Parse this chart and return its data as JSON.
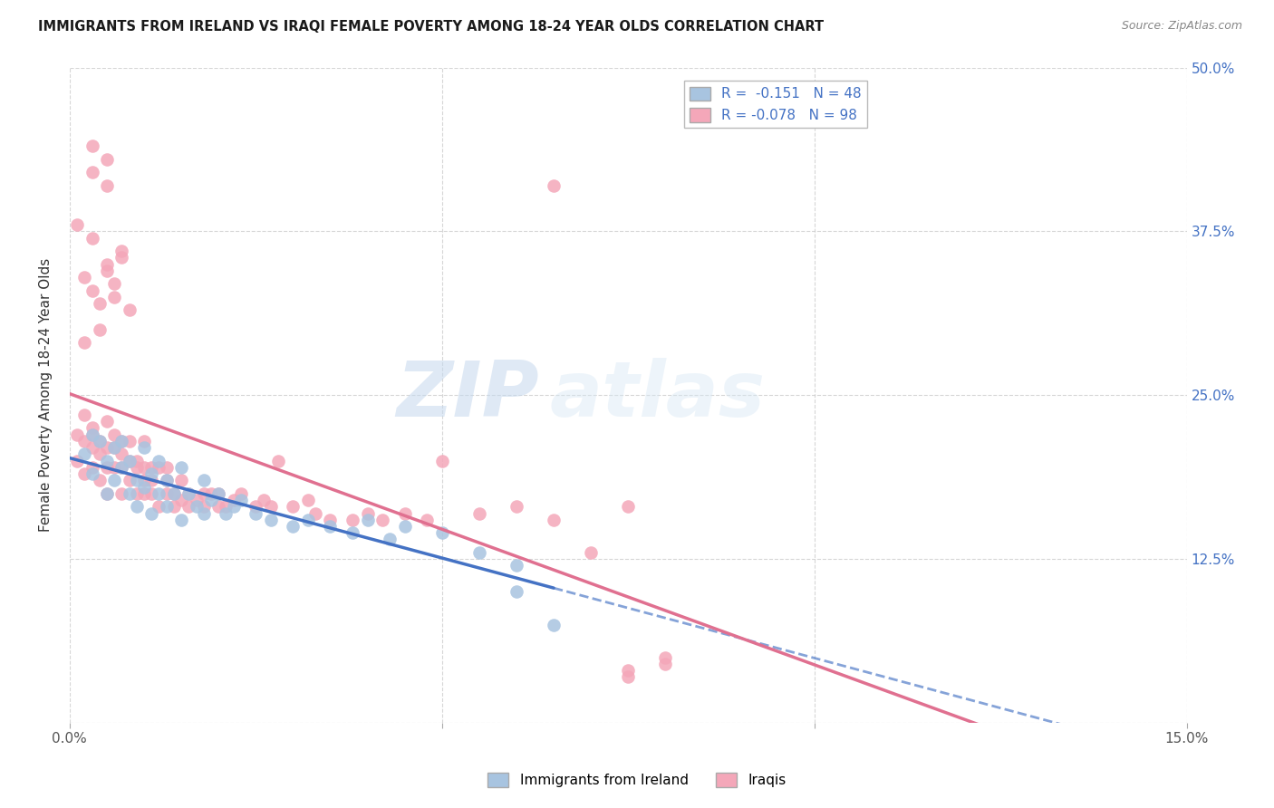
{
  "title": "IMMIGRANTS FROM IRELAND VS IRAQI FEMALE POVERTY AMONG 18-24 YEAR OLDS CORRELATION CHART",
  "source": "Source: ZipAtlas.com",
  "ylabel": "Female Poverty Among 18-24 Year Olds",
  "xlim": [
    0.0,
    0.15
  ],
  "ylim": [
    0.0,
    0.5
  ],
  "xticks": [
    0.0,
    0.05,
    0.1,
    0.15
  ],
  "yticks": [
    0.0,
    0.125,
    0.25,
    0.375,
    0.5
  ],
  "right_ytick_labels": [
    "50.0%",
    "37.5%",
    "25.0%",
    "12.5%",
    ""
  ],
  "xtick_labels": [
    "0.0%",
    "",
    "",
    "15.0%"
  ],
  "ireland_color": "#a8c4e0",
  "iraqi_color": "#f4a7b9",
  "ireland_line_color": "#4472c4",
  "iraqi_line_color": "#e07090",
  "ireland_R": -0.151,
  "ireland_N": 48,
  "iraqi_R": -0.078,
  "iraqi_N": 98,
  "legend_label_ireland": "Immigrants from Ireland",
  "legend_label_iraqi": "Iraqis",
  "watermark_zip": "ZIP",
  "watermark_atlas": "atlas",
  "ireland_x": [
    0.002,
    0.003,
    0.003,
    0.004,
    0.005,
    0.005,
    0.006,
    0.006,
    0.007,
    0.007,
    0.008,
    0.008,
    0.009,
    0.009,
    0.01,
    0.01,
    0.011,
    0.011,
    0.012,
    0.012,
    0.013,
    0.013,
    0.014,
    0.015,
    0.015,
    0.016,
    0.017,
    0.018,
    0.018,
    0.019,
    0.02,
    0.021,
    0.022,
    0.023,
    0.025,
    0.027,
    0.03,
    0.032,
    0.035,
    0.038,
    0.04,
    0.043,
    0.045,
    0.05,
    0.055,
    0.06,
    0.06,
    0.065
  ],
  "ireland_y": [
    0.205,
    0.22,
    0.19,
    0.215,
    0.2,
    0.175,
    0.21,
    0.185,
    0.195,
    0.215,
    0.175,
    0.2,
    0.185,
    0.165,
    0.21,
    0.18,
    0.19,
    0.16,
    0.175,
    0.2,
    0.185,
    0.165,
    0.175,
    0.195,
    0.155,
    0.175,
    0.165,
    0.185,
    0.16,
    0.17,
    0.175,
    0.16,
    0.165,
    0.17,
    0.16,
    0.155,
    0.15,
    0.155,
    0.15,
    0.145,
    0.155,
    0.14,
    0.15,
    0.145,
    0.13,
    0.12,
    0.1,
    0.075
  ],
  "iraqi_x": [
    0.001,
    0.001,
    0.002,
    0.002,
    0.002,
    0.003,
    0.003,
    0.003,
    0.003,
    0.004,
    0.004,
    0.004,
    0.005,
    0.005,
    0.005,
    0.005,
    0.006,
    0.006,
    0.006,
    0.007,
    0.007,
    0.007,
    0.007,
    0.008,
    0.008,
    0.008,
    0.009,
    0.009,
    0.009,
    0.01,
    0.01,
    0.01,
    0.01,
    0.011,
    0.011,
    0.011,
    0.012,
    0.012,
    0.013,
    0.013,
    0.013,
    0.014,
    0.014,
    0.015,
    0.015,
    0.016,
    0.016,
    0.017,
    0.018,
    0.018,
    0.019,
    0.02,
    0.02,
    0.021,
    0.022,
    0.023,
    0.025,
    0.026,
    0.027,
    0.028,
    0.03,
    0.032,
    0.033,
    0.035,
    0.038,
    0.04,
    0.042,
    0.045,
    0.048,
    0.05,
    0.055,
    0.06,
    0.065,
    0.07,
    0.075,
    0.075,
    0.08,
    0.003,
    0.005,
    0.007,
    0.003,
    0.005,
    0.003,
    0.005,
    0.007,
    0.002,
    0.004,
    0.006,
    0.008,
    0.001,
    0.002,
    0.003,
    0.004,
    0.005,
    0.006,
    0.065,
    0.075,
    0.08
  ],
  "iraqi_y": [
    0.22,
    0.2,
    0.215,
    0.19,
    0.235,
    0.22,
    0.21,
    0.195,
    0.225,
    0.205,
    0.185,
    0.215,
    0.23,
    0.21,
    0.195,
    0.175,
    0.22,
    0.195,
    0.21,
    0.215,
    0.195,
    0.175,
    0.205,
    0.2,
    0.185,
    0.215,
    0.195,
    0.175,
    0.2,
    0.215,
    0.185,
    0.195,
    0.175,
    0.195,
    0.185,
    0.175,
    0.195,
    0.165,
    0.195,
    0.175,
    0.185,
    0.175,
    0.165,
    0.185,
    0.17,
    0.175,
    0.165,
    0.17,
    0.175,
    0.165,
    0.175,
    0.165,
    0.175,
    0.165,
    0.17,
    0.175,
    0.165,
    0.17,
    0.165,
    0.2,
    0.165,
    0.17,
    0.16,
    0.155,
    0.155,
    0.16,
    0.155,
    0.16,
    0.155,
    0.2,
    0.16,
    0.165,
    0.155,
    0.13,
    0.165,
    0.04,
    0.045,
    0.44,
    0.43,
    0.36,
    0.37,
    0.35,
    0.42,
    0.41,
    0.355,
    0.29,
    0.32,
    0.335,
    0.315,
    0.38,
    0.34,
    0.33,
    0.3,
    0.345,
    0.325,
    0.41,
    0.035,
    0.05
  ]
}
